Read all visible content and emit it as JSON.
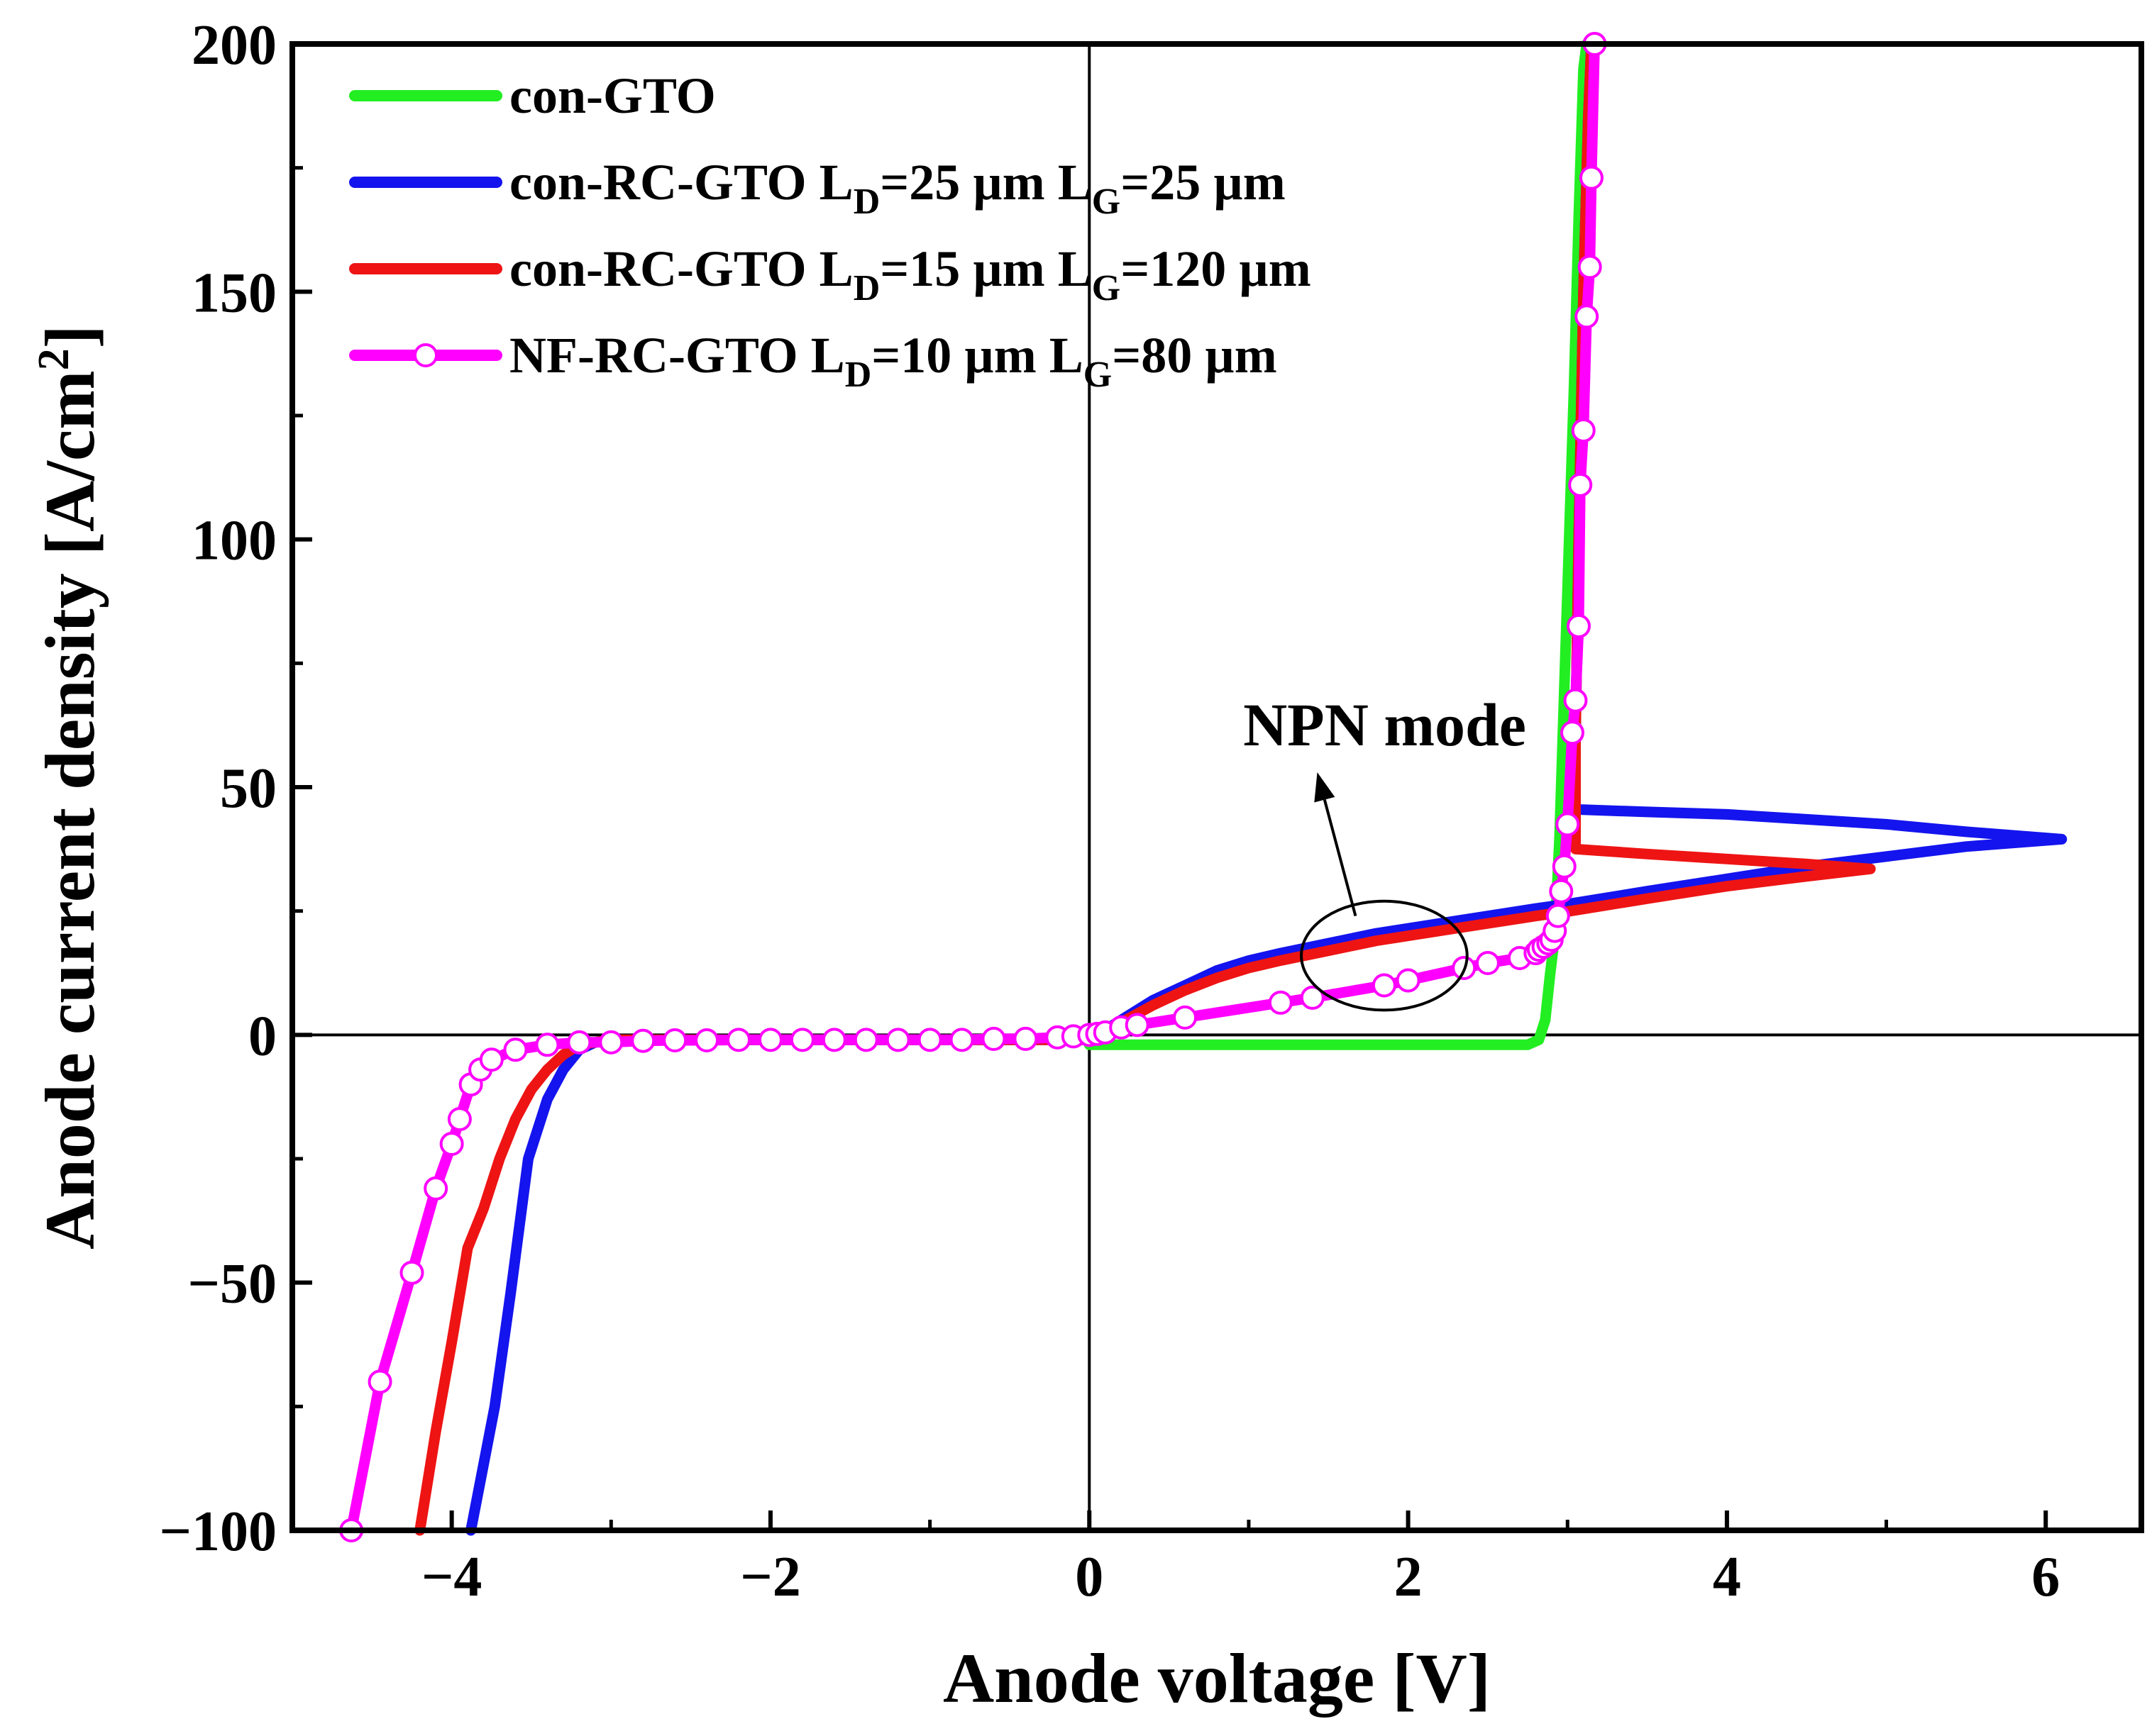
{
  "chart_data": {
    "type": "line",
    "xlabel": "Anode voltage [V]",
    "ylabel_main": "Anode current density [A/cm",
    "ylabel_sup": "2",
    "ylabel_end": "]",
    "xlim": [
      -5,
      6.6
    ],
    "ylim": [
      -100,
      200
    ],
    "xticks": [
      -4,
      -2,
      0,
      2,
      4,
      6
    ],
    "xtick_labels": [
      "−4",
      "−2",
      "0",
      "2",
      "4",
      "6"
    ],
    "yticks": [
      -100,
      -50,
      0,
      50,
      100,
      150,
      200
    ],
    "ytick_labels": [
      "−100",
      "−50",
      "0",
      "50",
      "100",
      "150",
      "200"
    ],
    "annotation": {
      "text": "NPN mode",
      "ellipse_center": [
        1.85,
        16
      ],
      "ellipse_radius": [
        0.52,
        11
      ],
      "arrow_from": [
        1.67,
        24
      ],
      "arrow_to": [
        1.43,
        53
      ]
    },
    "series": [
      {
        "name": "con-GTO",
        "legend": {
          "pre": "con-GTO",
          "d": "",
          "mid": "",
          "g": "",
          "post": ""
        },
        "color": "#22ee22",
        "marker": "none",
        "x": [
          0.0,
          1.0,
          2.0,
          2.5,
          2.75,
          2.82,
          2.86,
          2.89,
          2.92,
          2.95,
          2.98,
          3.01,
          3.04,
          3.07,
          3.1,
          3.12
        ],
        "y": [
          -2,
          -2,
          -2,
          -2,
          -2,
          -1,
          3,
          12,
          20,
          40,
          70,
          100,
          130,
          165,
          195,
          200
        ]
      },
      {
        "name": "con-RC-GTO LD=25 µm LG=25 µm",
        "legend": {
          "pre": "con-RC-GTO L",
          "d": "D",
          "mid": "=25 µm L",
          "g": "G",
          "post": "=25 µm"
        },
        "color": "#1414ee",
        "marker": "none",
        "x": [
          -3.88,
          -3.82,
          -3.73,
          -3.63,
          -3.52,
          -3.4,
          -3.3,
          -3.2,
          -3.1,
          -3.0,
          -2.5,
          -2.0,
          -1.0,
          -0.3,
          0.0,
          0.05,
          0.1,
          0.2,
          0.4,
          0.6,
          0.8,
          1.0,
          1.2,
          1.5,
          1.8,
          2.0,
          2.4,
          2.8,
          3.02,
          3.5,
          4.0,
          4.5,
          5.0,
          5.5,
          6.1,
          5.5,
          5.0,
          4.5,
          4.0,
          3.5,
          3.05,
          3.05,
          3.07,
          3.1,
          3.13,
          3.15
        ],
        "y": [
          -100,
          -90,
          -75,
          -52,
          -25,
          -13,
          -7,
          -3,
          -1.5,
          -1,
          -1,
          -1,
          -1,
          -1,
          -1,
          0,
          1,
          3,
          7,
          10,
          13,
          15,
          16.5,
          18.5,
          20.5,
          21.5,
          23.5,
          25.5,
          26.5,
          29,
          31.5,
          34,
          36,
          38,
          39.5,
          41,
          42.5,
          43.5,
          44.5,
          45,
          45.5,
          60,
          100,
          150,
          185,
          200
        ]
      },
      {
        "name": "con-RC-GTO LD=15 µm LG=120 µm",
        "legend": {
          "pre": "con-RC-GTO L",
          "d": "D",
          "mid": "=15 µm L",
          "g": "G",
          "post": "=120 µm"
        },
        "color": "#ee1414",
        "marker": "none",
        "x": [
          -4.2,
          -4.1,
          -4.0,
          -3.9,
          -3.8,
          -3.7,
          -3.6,
          -3.5,
          -3.4,
          -3.3,
          -3.2,
          -3.0,
          -2.5,
          -2.0,
          -1.0,
          -0.3,
          0.0,
          0.05,
          0.1,
          0.2,
          0.4,
          0.6,
          0.8,
          1.0,
          1.2,
          1.5,
          1.8,
          2.0,
          2.4,
          2.8,
          3.02,
          3.5,
          4.0,
          4.5,
          4.9,
          4.5,
          4.0,
          3.5,
          3.05,
          3.05,
          3.07,
          3.1,
          3.13,
          3.15
        ],
        "y": [
          -100,
          -80,
          -62,
          -43,
          -35,
          -25,
          -17,
          -11,
          -7,
          -4,
          -2,
          -1,
          -1,
          -1,
          -1,
          -1,
          -1,
          0,
          1,
          2.5,
          6,
          9,
          11.5,
          13.5,
          15,
          17,
          19,
          20,
          22,
          24,
          25,
          27.5,
          30,
          32,
          33.5,
          34.5,
          35.5,
          36.5,
          37.5,
          60,
          100,
          150,
          185,
          200
        ]
      },
      {
        "name": "NF-RC-GTO LD=10 µm LG=80 µm",
        "legend": {
          "pre": "NF-RC-GTO L",
          "d": "D",
          "mid": "=10 µm L",
          "g": "G",
          "post": "=80 µm"
        },
        "color": "#ff00ff",
        "marker": "circle",
        "x": [
          -4.63,
          -4.45,
          -4.25,
          -4.1,
          -4.0,
          -3.95,
          -3.88,
          -3.82,
          -3.75,
          -3.6,
          -3.4,
          -3.2,
          -3.0,
          -2.8,
          -2.6,
          -2.4,
          -2.2,
          -2.0,
          -1.8,
          -1.6,
          -1.4,
          -1.2,
          -1.0,
          -0.8,
          -0.6,
          -0.4,
          -0.2,
          -0.1,
          0.0,
          0.05,
          0.1,
          0.2,
          0.3,
          0.6,
          1.2,
          1.4,
          1.85,
          2.0,
          2.35,
          2.5,
          2.7,
          2.8,
          2.82,
          2.85,
          2.88,
          2.9,
          2.92,
          2.94,
          2.96,
          2.98,
          3.0,
          3.03,
          3.05,
          3.07,
          3.08,
          3.1,
          3.12,
          3.14,
          3.15,
          3.17
        ],
        "y": [
          -100,
          -70,
          -48,
          -31,
          -22,
          -17,
          -10,
          -7,
          -5,
          -3,
          -2,
          -1.5,
          -1.5,
          -1.2,
          -1.1,
          -1.1,
          -1,
          -1,
          -1,
          -1,
          -1,
          -1,
          -1,
          -1,
          -0.8,
          -0.8,
          -0.5,
          -0.3,
          0,
          0.2,
          0.5,
          1.5,
          2,
          3.5,
          6.5,
          7.5,
          10,
          11,
          13.5,
          14.5,
          15.5,
          16.5,
          17.2,
          17.8,
          18.5,
          19.2,
          21,
          24,
          29,
          34,
          42.5,
          61,
          67.5,
          82.5,
          111,
          122,
          145,
          155,
          173,
          200
        ]
      }
    ]
  }
}
